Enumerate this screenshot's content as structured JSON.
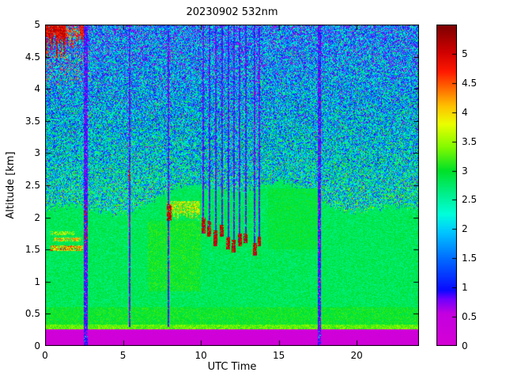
{
  "window": {
    "background": "#ffffff",
    "axes_color": "#000000"
  },
  "chart_data": {
    "type": "heatmap",
    "title": "20230902 532nm",
    "xlabel": "UTC Time",
    "ylabel": "Altitude [km]",
    "x_range": [
      0,
      24
    ],
    "y_range": [
      0,
      5
    ],
    "c_range": [
      0,
      5.5
    ],
    "grid": false,
    "legend": "colorbar-right",
    "x_ticks": [
      {
        "v": 0,
        "label": "0"
      },
      {
        "v": 5,
        "label": "5"
      },
      {
        "v": 10,
        "label": "10"
      },
      {
        "v": 15,
        "label": "15"
      },
      {
        "v": 20,
        "label": "20"
      }
    ],
    "y_ticks": [
      {
        "v": 0,
        "label": "0"
      },
      {
        "v": 0.5,
        "label": "0.5"
      },
      {
        "v": 1,
        "label": "1"
      },
      {
        "v": 1.5,
        "label": "1.5"
      },
      {
        "v": 2,
        "label": "2"
      },
      {
        "v": 2.5,
        "label": "2.5"
      },
      {
        "v": 3,
        "label": "3"
      },
      {
        "v": 3.5,
        "label": "3.5"
      },
      {
        "v": 4,
        "label": "4"
      },
      {
        "v": 4.5,
        "label": "4.5"
      },
      {
        "v": 5,
        "label": "5"
      }
    ],
    "colorbar_ticks": [
      {
        "v": 0,
        "label": "0"
      },
      {
        "v": 0.5,
        "label": "0.5"
      },
      {
        "v": 1,
        "label": "1"
      },
      {
        "v": 1.5,
        "label": "1.5"
      },
      {
        "v": 2,
        "label": "2"
      },
      {
        "v": 2.5,
        "label": "2.5"
      },
      {
        "v": 3,
        "label": "3"
      },
      {
        "v": 3.5,
        "label": "3.5"
      },
      {
        "v": 4,
        "label": "4"
      },
      {
        "v": 4.5,
        "label": "4.5"
      },
      {
        "v": 5,
        "label": "5"
      }
    ],
    "colormap": {
      "name": "jet-with-magenta-low",
      "stops": [
        [
          0.0,
          [
            214,
            0,
            214
          ]
        ],
        [
          0.55,
          [
            196,
            0,
            224
          ]
        ],
        [
          0.8,
          [
            110,
            0,
            255
          ]
        ],
        [
          0.95,
          [
            10,
            10,
            255
          ]
        ],
        [
          1.5,
          [
            0,
            110,
            255
          ]
        ],
        [
          1.95,
          [
            0,
            200,
            255
          ]
        ],
        [
          2.25,
          [
            0,
            255,
            220
          ]
        ],
        [
          2.6,
          [
            0,
            240,
            140
          ]
        ],
        [
          3.0,
          [
            0,
            225,
            40
          ]
        ],
        [
          3.4,
          [
            130,
            250,
            0
          ]
        ],
        [
          3.8,
          [
            235,
            255,
            0
          ]
        ],
        [
          4.1,
          [
            255,
            195,
            0
          ]
        ],
        [
          4.4,
          [
            255,
            110,
            0
          ]
        ],
        [
          4.7,
          [
            255,
            25,
            0
          ]
        ],
        [
          5.05,
          [
            205,
            0,
            0
          ]
        ],
        [
          5.5,
          [
            125,
            0,
            0
          ]
        ]
      ]
    },
    "render": {
      "seed": 7,
      "surface": {
        "band_top": 0.26,
        "band_v": 0.12,
        "band_jitter": 0.12,
        "line_top": 0.33,
        "line_v": 3.05,
        "line_jitter": 0.5
      },
      "aerosol": {
        "v": 2.8,
        "jitter": 0.45,
        "low_top": 0.6,
        "low_boost": 0.2
      },
      "boundary": {
        "base": 2.3,
        "waves": [
          [
            0.22,
            0.3,
            -2.2
          ],
          [
            0.1,
            0.9,
            0
          ]
        ],
        "ragged": 0.12
      },
      "speckle": {
        "base": 2.3,
        "ref": 2.3,
        "slope": 0.28,
        "spread": 2.4,
        "magenta_frac": 0.03,
        "bright_frac": 0.006,
        "red_frac": 0.002
      },
      "patches": [
        {
          "x0": 6.6,
          "x1": 10.0,
          "y0": 0.85,
          "y1": 1.95,
          "v": 3.0,
          "j": 0.5
        },
        {
          "x0": 14.3,
          "x1": 17.6,
          "y0": 1.5,
          "y1": 2.45,
          "v": 2.92,
          "j": 0.4
        }
      ],
      "clouds": [
        {
          "x0": 0.05,
          "x1": 1.35,
          "y0": 4.45,
          "y1": 5.0,
          "v": 4.95,
          "j": 0.9,
          "d": 0.95,
          "rag": 0.4
        },
        {
          "x0": 1.35,
          "x1": 2.2,
          "y0": 4.62,
          "y1": 5.0,
          "v": 4.6,
          "j": 1.0,
          "d": 0.5,
          "rag": 0.2
        },
        {
          "x0": 2.25,
          "x1": 2.6,
          "y0": 4.72,
          "y1": 5.0,
          "v": 4.8,
          "j": 0.8,
          "d": 0.9,
          "rag": 0.1
        },
        {
          "x0": 0.05,
          "x1": 3.0,
          "y0": 4.05,
          "y1": 4.6,
          "v": 4.4,
          "j": 0.9,
          "d": 0.1,
          "rag": 0
        },
        {
          "x0": 0.35,
          "x1": 2.45,
          "y0": 1.48,
          "y1": 1.57,
          "v": 4.1,
          "j": 1.6,
          "d": 0.8,
          "rag": 0
        },
        {
          "x0": 0.5,
          "x1": 2.35,
          "y0": 1.62,
          "y1": 1.69,
          "v": 3.9,
          "j": 1.3,
          "d": 0.7,
          "rag": 0
        },
        {
          "x0": 0.3,
          "x1": 1.9,
          "y0": 1.73,
          "y1": 1.79,
          "v": 3.6,
          "j": 1.0,
          "d": 0.55,
          "rag": 0
        },
        {
          "x0": 7.8,
          "x1": 9.95,
          "y0": 1.95,
          "y1": 2.25,
          "v": 3.7,
          "j": 1.3,
          "d": 0.75,
          "rag": 0.15
        }
      ],
      "streaks": [
        {
          "x": 2.62,
          "hw": 0.11,
          "y0": 0,
          "y1": 5,
          "v": 0.45,
          "j": 0.85
        },
        {
          "x": 5.42,
          "hw": 0.045,
          "y0": 0.3,
          "y1": 5,
          "v": 0.35,
          "j": 1.0
        },
        {
          "x": 7.93,
          "hw": 0.05,
          "y0": 0.3,
          "y1": 5,
          "v": 0.35,
          "j": 1.0
        },
        {
          "x": 10.17,
          "hw": 0.05,
          "y0": 1.75,
          "y1": 5,
          "v": 0.4,
          "j": 1.0
        },
        {
          "x": 10.55,
          "hw": 0.06,
          "y0": 1.7,
          "y1": 5,
          "v": 0.4,
          "j": 1.0
        },
        {
          "x": 10.95,
          "hw": 0.06,
          "y0": 1.55,
          "y1": 5,
          "v": 0.4,
          "j": 1.0
        },
        {
          "x": 11.35,
          "hw": 0.05,
          "y0": 1.7,
          "y1": 5,
          "v": 0.4,
          "j": 1.0
        },
        {
          "x": 11.75,
          "hw": 0.05,
          "y0": 1.5,
          "y1": 5,
          "v": 0.4,
          "j": 1.0
        },
        {
          "x": 12.12,
          "hw": 0.06,
          "y0": 1.45,
          "y1": 5,
          "v": 0.4,
          "j": 1.0
        },
        {
          "x": 12.5,
          "hw": 0.05,
          "y0": 1.55,
          "y1": 5,
          "v": 0.4,
          "j": 1.0
        },
        {
          "x": 12.88,
          "hw": 0.04,
          "y0": 1.6,
          "y1": 5,
          "v": 0.4,
          "j": 1.0
        },
        {
          "x": 13.45,
          "hw": 0.05,
          "y0": 1.4,
          "y1": 5,
          "v": 0.4,
          "j": 1.0
        },
        {
          "x": 13.75,
          "hw": 0.04,
          "y0": 1.55,
          "y1": 5,
          "v": 0.4,
          "j": 1.0
        },
        {
          "x": 17.62,
          "hw": 0.11,
          "y0": 0,
          "y1": 5,
          "v": 0.45,
          "j": 0.85
        }
      ],
      "caps": [
        {
          "x0": 7.8,
          "x1": 8.1,
          "y0": 1.95,
          "y1": 2.2,
          "v": 4.7,
          "j": 0.7,
          "d": 0.85
        },
        {
          "x0": 10.05,
          "x1": 10.3,
          "y0": 1.75,
          "y1": 2.0,
          "v": 4.7,
          "j": 0.7,
          "d": 0.85
        },
        {
          "x0": 10.42,
          "x1": 10.68,
          "y0": 1.7,
          "y1": 1.95,
          "v": 4.7,
          "j": 0.7,
          "d": 0.85
        },
        {
          "x0": 10.82,
          "x1": 11.08,
          "y0": 1.55,
          "y1": 1.8,
          "v": 4.7,
          "j": 0.7,
          "d": 0.85
        },
        {
          "x0": 11.22,
          "x1": 11.48,
          "y0": 1.7,
          "y1": 1.88,
          "v": 4.7,
          "j": 0.7,
          "d": 0.85
        },
        {
          "x0": 11.62,
          "x1": 11.88,
          "y0": 1.5,
          "y1": 1.7,
          "v": 4.7,
          "j": 0.7,
          "d": 0.85
        },
        {
          "x0": 12.0,
          "x1": 12.25,
          "y0": 1.45,
          "y1": 1.65,
          "v": 4.7,
          "j": 0.7,
          "d": 0.85
        },
        {
          "x0": 12.38,
          "x1": 12.62,
          "y0": 1.55,
          "y1": 1.75,
          "v": 4.7,
          "j": 0.7,
          "d": 0.85
        },
        {
          "x0": 12.76,
          "x1": 13.0,
          "y0": 1.6,
          "y1": 1.75,
          "v": 4.7,
          "j": 0.7,
          "d": 0.85
        },
        {
          "x0": 13.32,
          "x1": 13.58,
          "y0": 1.4,
          "y1": 1.6,
          "v": 4.7,
          "j": 0.7,
          "d": 0.85
        },
        {
          "x0": 13.65,
          "x1": 13.85,
          "y0": 1.55,
          "y1": 1.7,
          "v": 4.7,
          "j": 0.7,
          "d": 0.85
        },
        {
          "x0": 2.5,
          "x1": 2.74,
          "y0": 1.55,
          "y1": 2.2,
          "v": 4.6,
          "j": 0.8,
          "d": 0.25
        },
        {
          "x0": 5.35,
          "x1": 5.5,
          "y0": 2.55,
          "y1": 2.75,
          "v": 4.6,
          "j": 0.8,
          "d": 0.5
        }
      ]
    }
  }
}
